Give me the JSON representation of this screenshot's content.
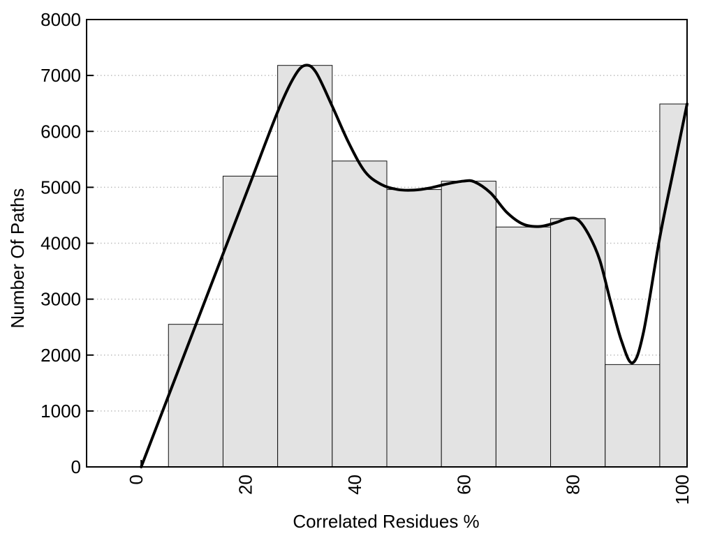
{
  "page": {
    "background": "#ffffff"
  },
  "chart_data": {
    "type": "bar",
    "subtype": "histogram-with-density-curve",
    "title": "",
    "xlabel": "Correlated Residues %",
    "ylabel": "Number Of Paths",
    "xlim": [
      -10,
      100
    ],
    "ylim": [
      0,
      8000
    ],
    "xticks": [
      0,
      20,
      40,
      60,
      80,
      100
    ],
    "xtick_labels": [
      "0",
      "20",
      "40",
      "60",
      "80",
      "100"
    ],
    "xtick_label_rotation_deg": -90,
    "yticks": [
      0,
      1000,
      2000,
      3000,
      4000,
      5000,
      6000,
      7000,
      8000
    ],
    "ytick_labels": [
      "0",
      "1000",
      "2000",
      "3000",
      "4000",
      "5000",
      "6000",
      "7000",
      "8000"
    ],
    "grid": "horizontal dotted at each 1000",
    "legend": "none",
    "colors": {
      "bar_fill": "#e3e3e3",
      "bar_edge": "#111111",
      "curve": "#000000",
      "grid": "#b9b9b9",
      "axis": "#000000",
      "text": "#000000"
    },
    "bins": [
      {
        "from": 5,
        "to": 15,
        "count": 2550
      },
      {
        "from": 15,
        "to": 25,
        "count": 5200
      },
      {
        "from": 25,
        "to": 35,
        "count": 7180
      },
      {
        "from": 35,
        "to": 45,
        "count": 5470
      },
      {
        "from": 45,
        "to": 55,
        "count": 4960
      },
      {
        "from": 55,
        "to": 65,
        "count": 5110
      },
      {
        "from": 65,
        "to": 75,
        "count": 4290
      },
      {
        "from": 75,
        "to": 85,
        "count": 4440
      },
      {
        "from": 85,
        "to": 95,
        "count": 1830
      },
      {
        "from": 95,
        "to": 100,
        "count": 6490
      }
    ],
    "curve_points": [
      [
        0,
        0
      ],
      [
        5,
        1270
      ],
      [
        10,
        2540
      ],
      [
        15,
        3810
      ],
      [
        20,
        5080
      ],
      [
        25,
        6350
      ],
      [
        28,
        6970
      ],
      [
        30,
        7180
      ],
      [
        32,
        7060
      ],
      [
        35,
        6450
      ],
      [
        38,
        5800
      ],
      [
        41,
        5280
      ],
      [
        44,
        5050
      ],
      [
        47,
        4960
      ],
      [
        50,
        4950
      ],
      [
        53,
        4990
      ],
      [
        56,
        5060
      ],
      [
        59,
        5110
      ],
      [
        61,
        5100
      ],
      [
        64,
        4900
      ],
      [
        67,
        4550
      ],
      [
        70,
        4340
      ],
      [
        73,
        4300
      ],
      [
        76,
        4370
      ],
      [
        78,
        4440
      ],
      [
        80,
        4420
      ],
      [
        82,
        4150
      ],
      [
        84,
        3700
      ],
      [
        86,
        2950
      ],
      [
        88,
        2250
      ],
      [
        90,
        1860
      ],
      [
        92,
        2400
      ],
      [
        95,
        4100
      ],
      [
        97.5,
        5300
      ],
      [
        100,
        6490
      ]
    ]
  }
}
